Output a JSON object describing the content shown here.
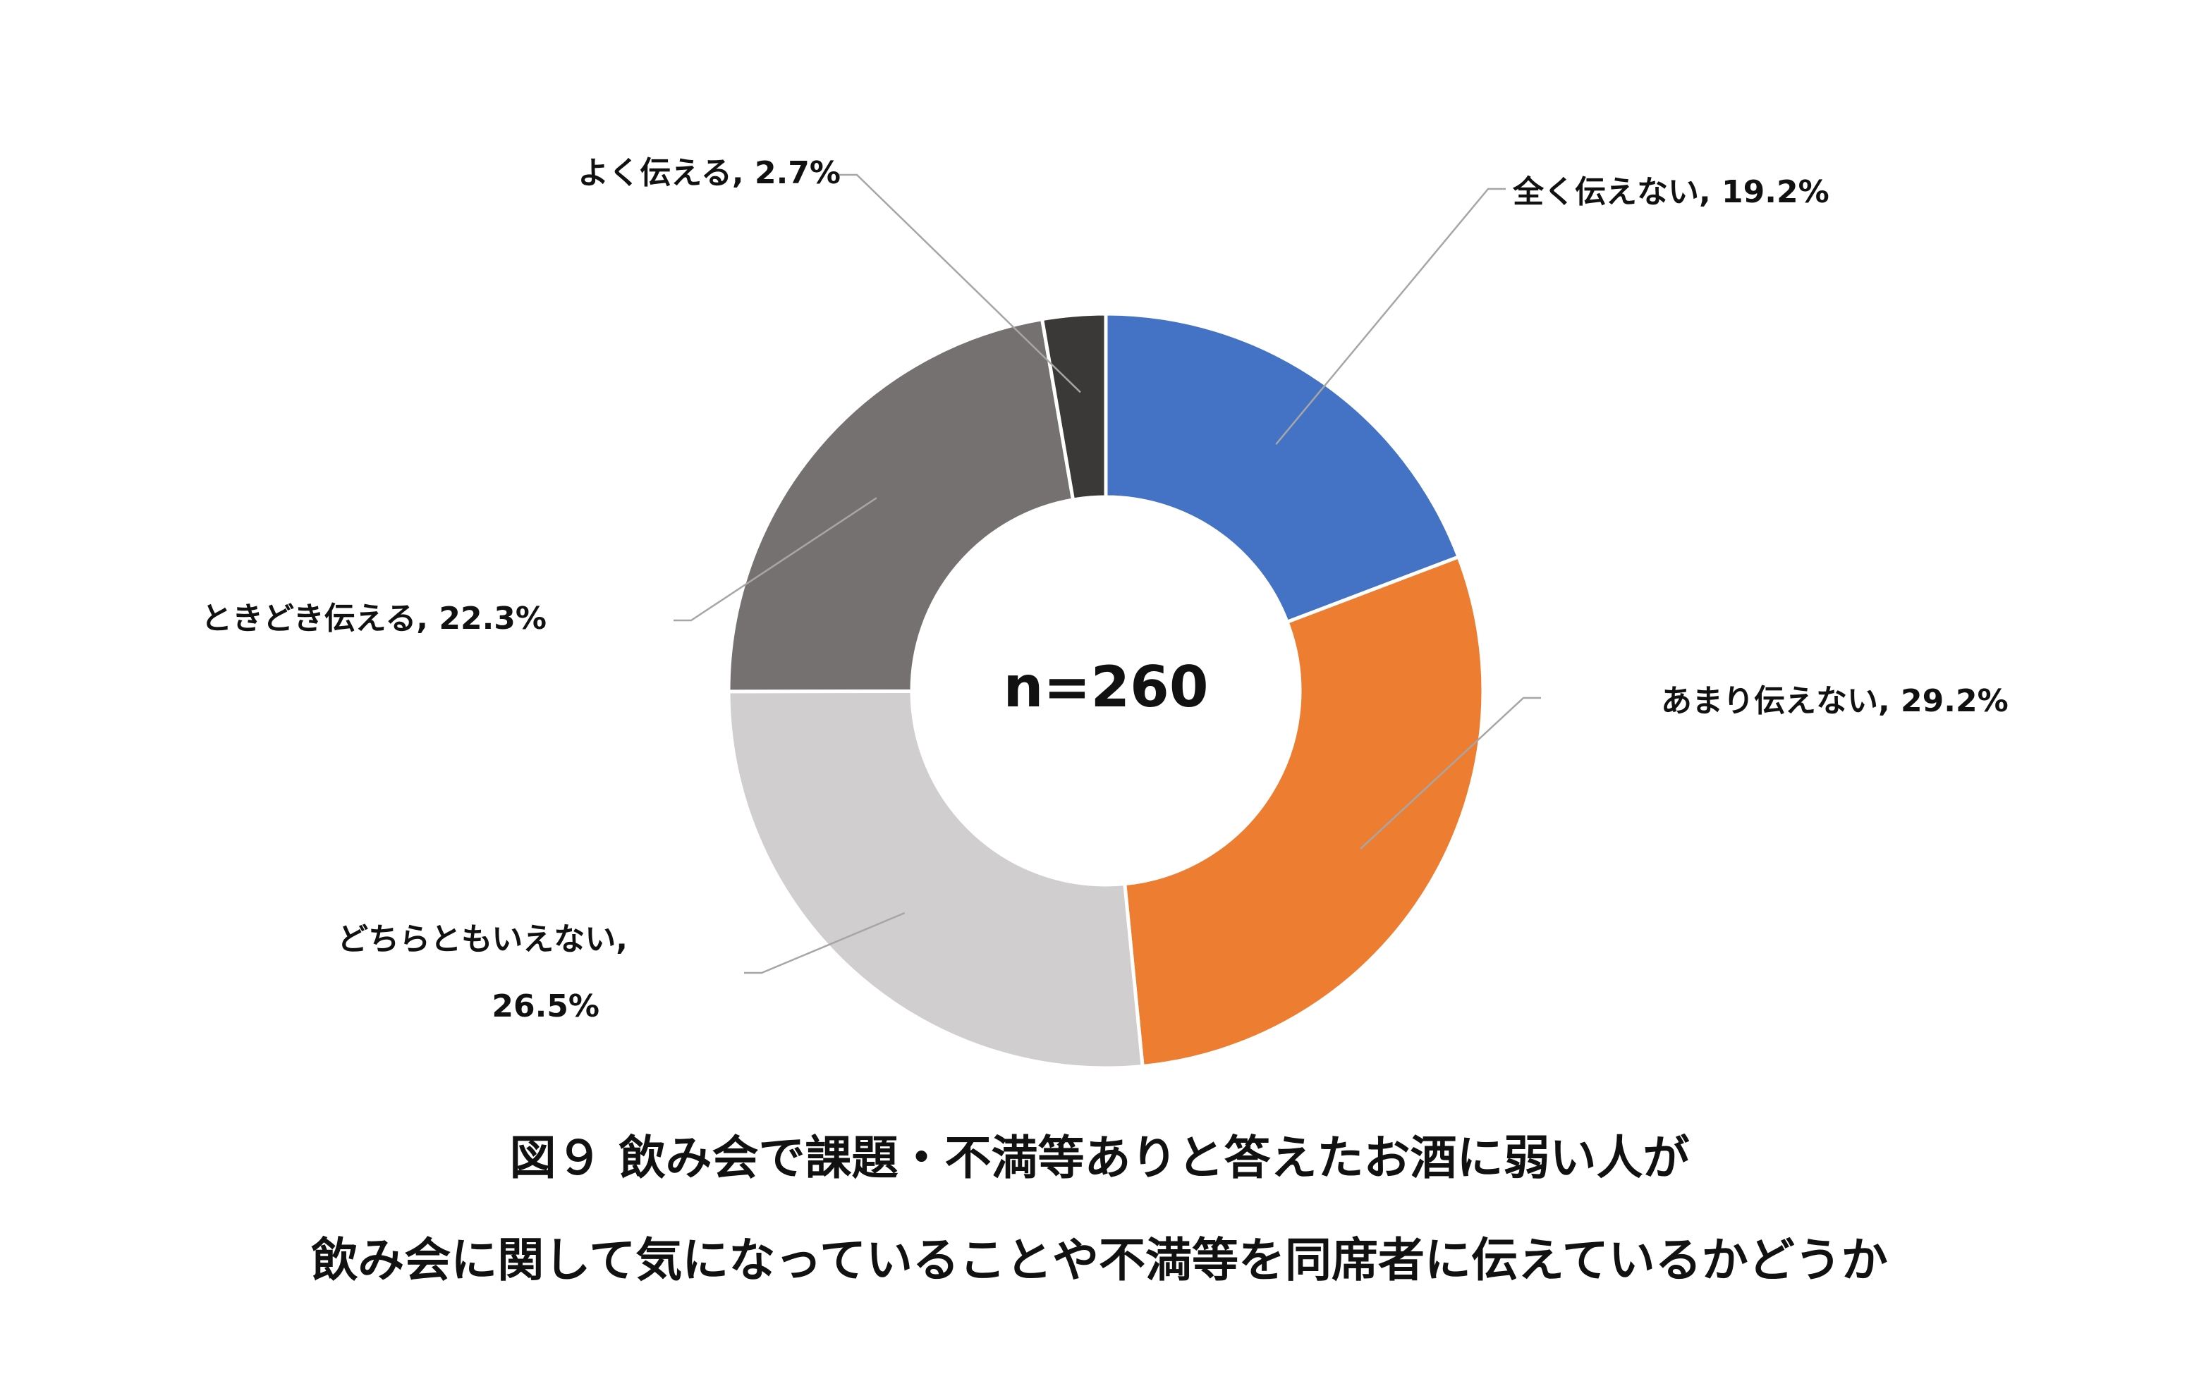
{
  "chart_data": {
    "type": "pie",
    "variant": "donut",
    "categories": [
      "全く伝えない",
      "あまり伝えない",
      "どちらともいえない",
      "ときどき伝える",
      "よく伝える"
    ],
    "values": [
      19.2,
      29.2,
      26.5,
      22.3,
      2.7
    ],
    "unit": "%",
    "colors": [
      "#4472c4",
      "#ed7d31",
      "#d0cece",
      "#767171",
      "#3b3838"
    ],
    "data_labels": [
      "全く伝えない, 19.2%",
      "あまり伝えない, 29.2%",
      "どちらともいえない,",
      "ときどき伝える, 22.3%",
      "よく伝える, 2.7%"
    ],
    "data_label_extra": {
      "どちらともいえない": "26.5%"
    },
    "center_text": "n=260",
    "title_lines": [
      "図９ 飲み会で課題・不満等ありと答えたお酒に弱い人が",
      "飲み会に関して気になっていることや不満等を同席者に伝えているかどうか"
    ],
    "start_angle": "12 o'clock",
    "direction": "clockwise",
    "legend": "none"
  }
}
